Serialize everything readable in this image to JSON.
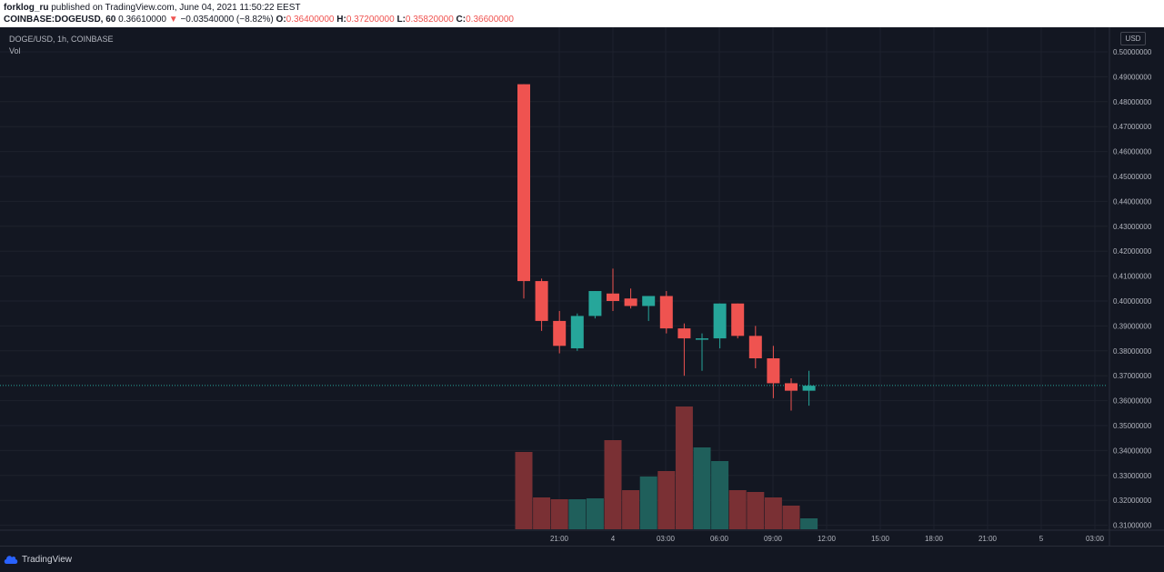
{
  "header": {
    "author": "forklog_ru",
    "published_text": "published on TradingView.com, June 04, 2021 11:50:22 EEST",
    "symbol": "COINBASE:DOGEUSD, 60",
    "last_price": "0.36610000",
    "change_arrow": "▼",
    "change": "−0.03540000 (−8.82%)",
    "o_label": "O:",
    "o_value": "0.36400000",
    "h_label": "H:",
    "h_value": "0.37200000",
    "l_label": "L:",
    "l_value": "0.35820000",
    "c_label": "C:",
    "c_value": "0.36600000"
  },
  "legend": {
    "title": "DOGE/USD, 1h, COINBASE",
    "vol_label": "Vol"
  },
  "currency": "USD",
  "footer": {
    "brand": "TradingView"
  },
  "colors": {
    "up": "#26a69a",
    "down": "#ef5350",
    "vol_up": "#1f5f5b",
    "vol_down": "#7a3034",
    "background": "#131722",
    "grid": "#1e222d"
  },
  "chart_data": {
    "type": "candlestick",
    "price_ticks": [
      "0.50000000",
      "0.49000000",
      "0.48000000",
      "0.47000000",
      "0.46000000",
      "0.45000000",
      "0.44000000",
      "0.43000000",
      "0.42000000",
      "0.41000000",
      "0.40000000",
      "0.39000000",
      "0.38000000",
      "0.37000000",
      "0.36000000",
      "0.35000000",
      "0.34000000",
      "0.33000000",
      "0.32000000",
      "0.31000000"
    ],
    "time_ticks": [
      "21:00",
      "4",
      "03:00",
      "06:00",
      "09:00",
      "12:00",
      "15:00",
      "18:00",
      "21:00",
      "5",
      "03:00"
    ],
    "current_price": 0.3661,
    "candles": [
      {
        "o": 0.487,
        "h": 0.487,
        "l": 0.401,
        "c": 0.408
      },
      {
        "o": 0.408,
        "h": 0.409,
        "l": 0.388,
        "c": 0.392
      },
      {
        "o": 0.392,
        "h": 0.396,
        "l": 0.379,
        "c": 0.382
      },
      {
        "o": 0.381,
        "h": 0.395,
        "l": 0.38,
        "c": 0.394
      },
      {
        "o": 0.394,
        "h": 0.404,
        "l": 0.393,
        "c": 0.404
      },
      {
        "o": 0.403,
        "h": 0.413,
        "l": 0.396,
        "c": 0.4
      },
      {
        "o": 0.401,
        "h": 0.405,
        "l": 0.397,
        "c": 0.398
      },
      {
        "o": 0.398,
        "h": 0.402,
        "l": 0.392,
        "c": 0.402
      },
      {
        "o": 0.402,
        "h": 0.404,
        "l": 0.387,
        "c": 0.389
      },
      {
        "o": 0.389,
        "h": 0.391,
        "l": 0.37,
        "c": 0.385
      },
      {
        "o": 0.385,
        "h": 0.387,
        "l": 0.372,
        "c": 0.385
      },
      {
        "o": 0.385,
        "h": 0.399,
        "l": 0.381,
        "c": 0.399
      },
      {
        "o": 0.399,
        "h": 0.399,
        "l": 0.385,
        "c": 0.386
      },
      {
        "o": 0.386,
        "h": 0.39,
        "l": 0.373,
        "c": 0.377
      },
      {
        "o": 0.377,
        "h": 0.382,
        "l": 0.361,
        "c": 0.367
      },
      {
        "o": 0.367,
        "h": 0.369,
        "l": 0.356,
        "c": 0.364
      },
      {
        "o": 0.364,
        "h": 0.372,
        "l": 0.358,
        "c": 0.366
      }
    ],
    "volume": [
      {
        "v": 0.85,
        "up": false
      },
      {
        "v": 0.35,
        "up": false
      },
      {
        "v": 0.33,
        "up": false
      },
      {
        "v": 0.33,
        "up": true
      },
      {
        "v": 0.34,
        "up": true
      },
      {
        "v": 0.98,
        "up": false
      },
      {
        "v": 0.43,
        "up": false
      },
      {
        "v": 0.58,
        "up": true
      },
      {
        "v": 0.64,
        "up": false
      },
      {
        "v": 1.35,
        "up": false
      },
      {
        "v": 0.9,
        "up": true
      },
      {
        "v": 0.75,
        "up": true
      },
      {
        "v": 0.43,
        "up": false
      },
      {
        "v": 0.41,
        "up": false
      },
      {
        "v": 0.35,
        "up": false
      },
      {
        "v": 0.26,
        "up": false
      },
      {
        "v": 0.12,
        "up": true
      }
    ]
  }
}
